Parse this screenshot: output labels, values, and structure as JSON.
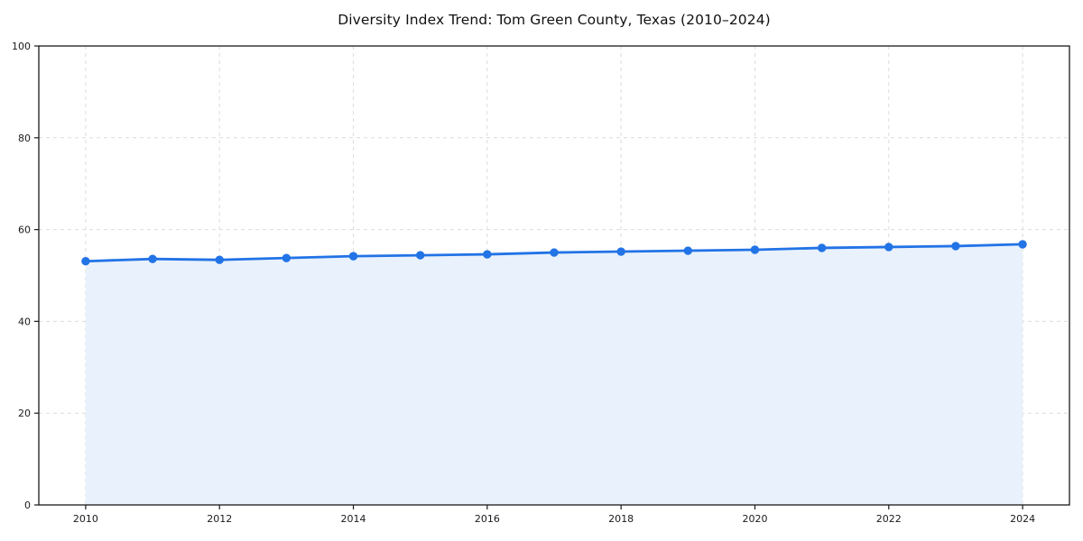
{
  "title": "Diversity Index Trend: Tom Green County, Texas (2010–2024)",
  "chart_data": {
    "type": "line",
    "title": "Diversity Index Trend: Tom Green County, Texas (2010–2024)",
    "x": [
      2010,
      2011,
      2012,
      2013,
      2014,
      2015,
      2016,
      2017,
      2018,
      2019,
      2020,
      2021,
      2022,
      2023,
      2024
    ],
    "series": [
      {
        "name": "Diversity Index",
        "values": [
          53.1,
          53.6,
          53.4,
          53.8,
          54.2,
          54.4,
          54.6,
          55.0,
          55.2,
          55.4,
          55.6,
          56.0,
          56.2,
          56.4,
          56.8
        ]
      }
    ],
    "xlabel": "",
    "ylabel": "",
    "xlim": [
      2009.3,
      2024.7
    ],
    "ylim": [
      0,
      100
    ],
    "xticks": [
      2010,
      2012,
      2014,
      2016,
      2018,
      2020,
      2022,
      2024
    ],
    "yticks": [
      0,
      20,
      40,
      60,
      80,
      100
    ],
    "grid": true,
    "grid_style": "dashed",
    "legend": false,
    "marker": "circle",
    "area_fill": true,
    "colors": {
      "line": "#2273e6",
      "marker": "#2273e6",
      "area": "#e8f1fc",
      "grid": "#dcdcdc",
      "spine": "#1a1a1a",
      "background": "#ffffff"
    }
  }
}
